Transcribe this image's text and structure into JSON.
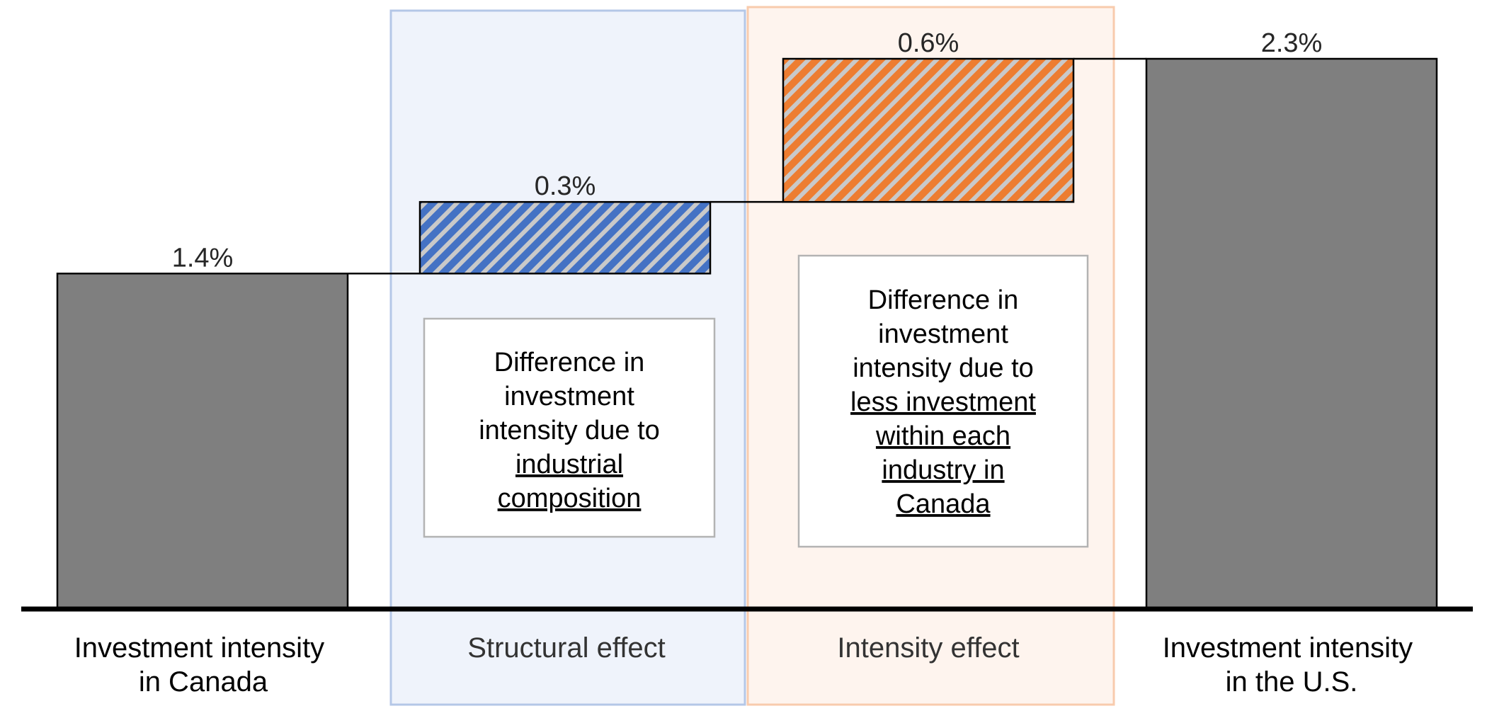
{
  "chart_data": {
    "type": "waterfall",
    "categories": [
      {
        "key": "canada",
        "lines": [
          "Investment intensity",
          "in Canada"
        ]
      },
      {
        "key": "structural",
        "lines": [
          "Structural effect"
        ]
      },
      {
        "key": "intensity",
        "lines": [
          "Intensity effect"
        ]
      },
      {
        "key": "us",
        "lines": [
          "Investment intensity",
          "in the U.S."
        ]
      }
    ],
    "steps": [
      {
        "key": "canada",
        "kind": "total",
        "start": 0,
        "end": 1.4,
        "label": "1.4%"
      },
      {
        "key": "structural",
        "kind": "increment",
        "start": 1.4,
        "end": 1.7,
        "label": "0.3%"
      },
      {
        "key": "intensity",
        "kind": "increment",
        "start": 1.7,
        "end": 2.3,
        "label": "0.6%"
      },
      {
        "key": "us",
        "kind": "total",
        "start": 0,
        "end": 2.3,
        "label": "2.3%"
      }
    ],
    "annotations": [
      {
        "key": "structural",
        "lines": [
          {
            "text": "Difference in",
            "underline": false
          },
          {
            "text": "investment",
            "underline": false
          },
          {
            "text": "intensity due to",
            "underline": false
          },
          {
            "text": "industrial",
            "underline": true
          },
          {
            "text": "composition",
            "underline": true
          }
        ]
      },
      {
        "key": "intensity",
        "lines": [
          {
            "text": "Difference in",
            "underline": false
          },
          {
            "text": "investment",
            "underline": false
          },
          {
            "text": "intensity due to",
            "underline": false
          },
          {
            "text": "less investment",
            "underline": true
          },
          {
            "text": "within each",
            "underline": true
          },
          {
            "text": "industry in",
            "underline": true
          },
          {
            "text": "Canada",
            "underline": true
          }
        ]
      }
    ],
    "ylim": [
      0,
      2.3
    ],
    "grid": false,
    "colors": {
      "total": "#7f7f7f",
      "structural": "#4472c4",
      "intensity": "#ed7d31",
      "hatch_stripe": "#c9c9c9",
      "structural_panel_fill": "#eff3fb",
      "structural_panel_border": "#b4c7e7",
      "intensity_panel_fill": "#fef4ee",
      "intensity_panel_border": "#f8cbad"
    }
  }
}
